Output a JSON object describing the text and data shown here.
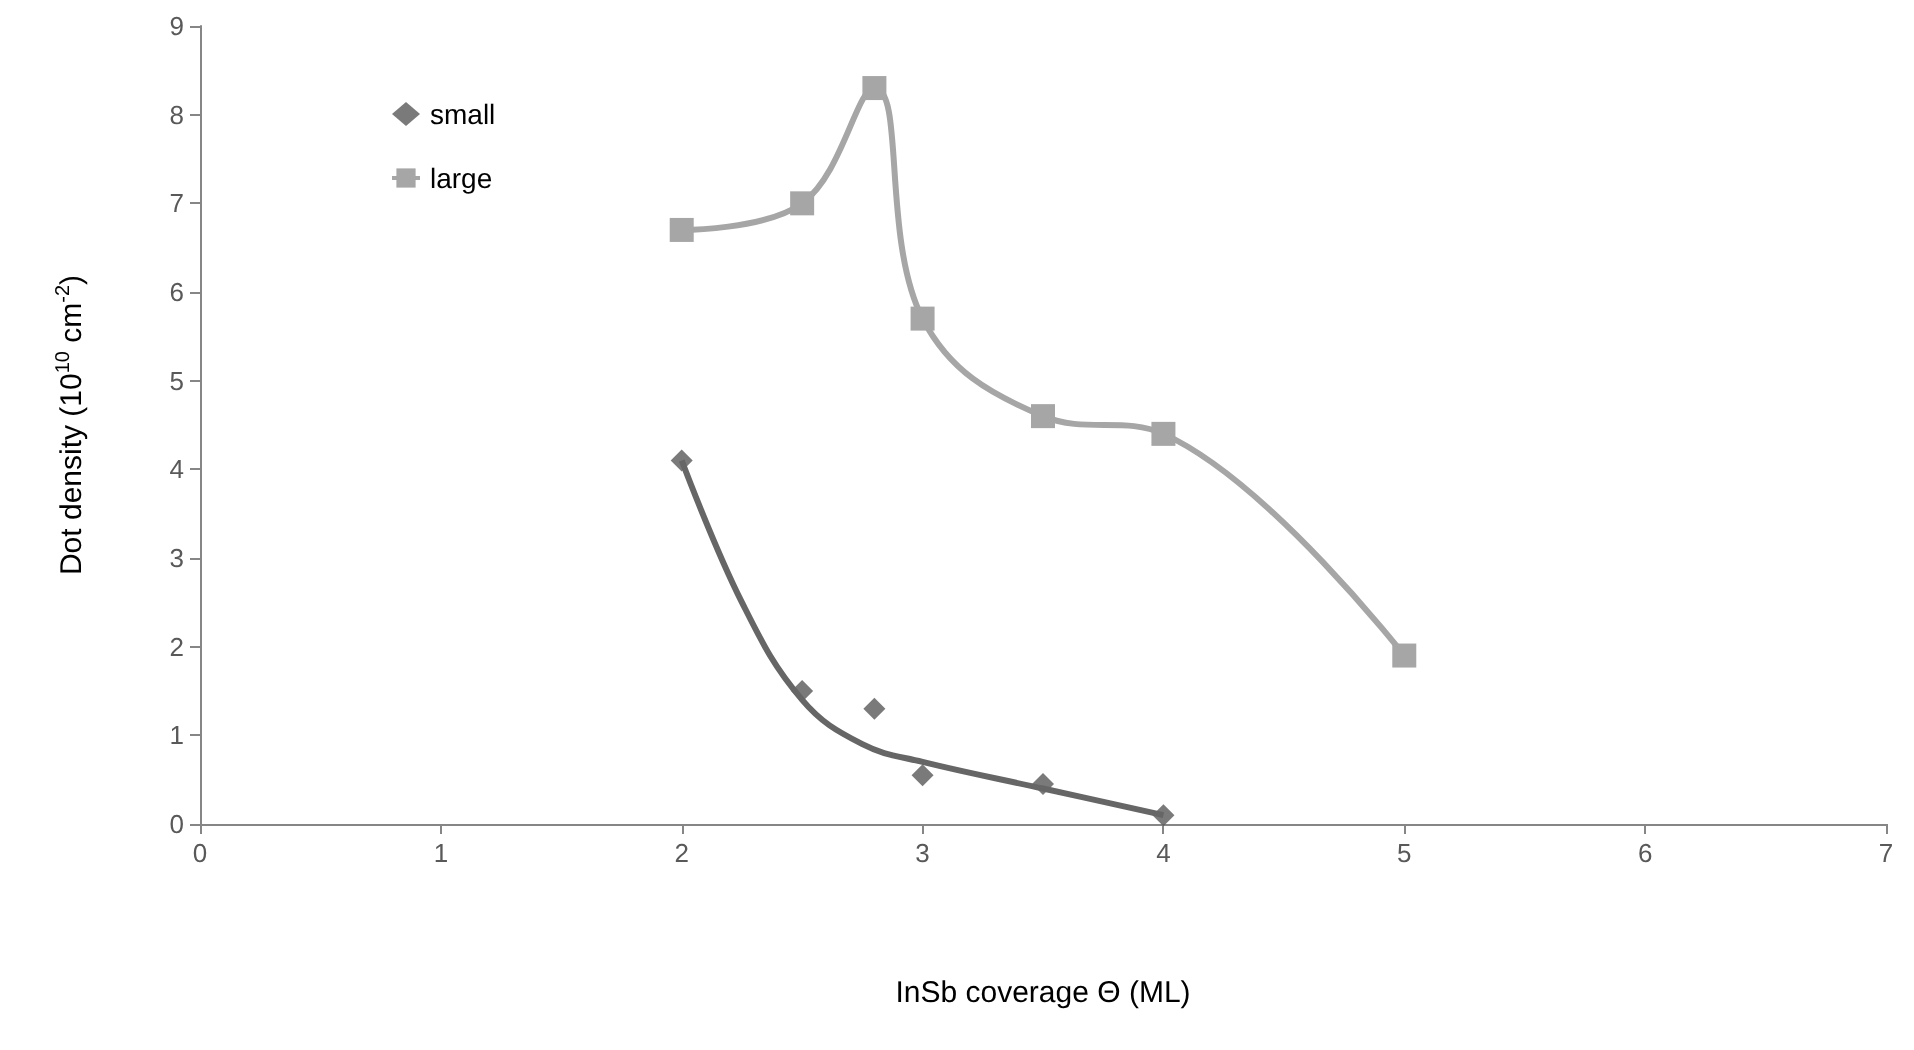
{
  "chart_data": {
    "type": "line",
    "xlabel": "InSb coverage Θ (ML)",
    "ylabel": "Dot density (10$^{10}$ cm$^{-2}$)",
    "xlim": [
      0,
      7
    ],
    "xticks": [
      0,
      1,
      2,
      3,
      4,
      5,
      6,
      7
    ],
    "ylim": [
      0,
      9
    ],
    "yticks": [
      0,
      1,
      2,
      3,
      4,
      5,
      6,
      7,
      8,
      9
    ],
    "grid": false,
    "legend": "top left",
    "series": [
      {
        "name": "small",
        "type": "scatter",
        "marker": "diamond",
        "color": "#595959",
        "x": [
          2,
          2.5,
          2.8,
          3,
          3.5,
          4
        ],
        "values": [
          4.1,
          1.5,
          1.3,
          0.55,
          0.45,
          0.1
        ]
      },
      {
        "name": "large",
        "marker": "square",
        "color": "#a6a6a6",
        "x": [
          2,
          2.5,
          2.8,
          3,
          3.5,
          4,
          5
        ],
        "values": [
          6.7,
          7,
          8.3,
          5.7,
          4.6,
          4.4,
          1.9
        ]
      },
      {
        "type": "line",
        "marker": "none",
        "color": "#666666",
        "x": [
          2,
          2.25,
          2.5,
          2.75,
          3,
          3.5,
          4
        ],
        "values": [
          4.1,
          2.5,
          1.4,
          0.9,
          0.7,
          0.4,
          0.1
        ]
      }
    ]
  }
}
